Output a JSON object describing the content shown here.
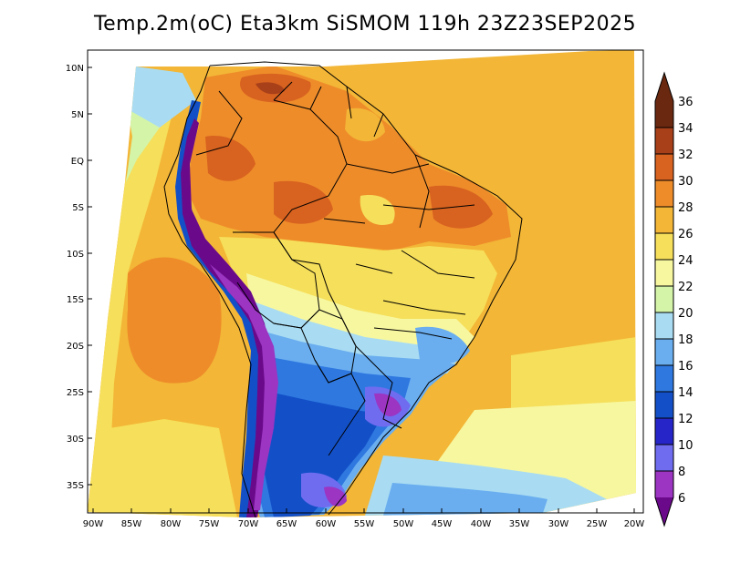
{
  "title": "Temp.2m(oC) Eta3km SiSMOM 119h 23Z23SEP2025",
  "colorbar": {
    "levels": [
      "6",
      "8",
      "10",
      "12",
      "14",
      "16",
      "18",
      "20",
      "22",
      "24",
      "26",
      "28",
      "30",
      "32",
      "34",
      "36"
    ],
    "colors": [
      "#6a0a8a",
      "#9b35c2",
      "#6f6cf0",
      "#2626c8",
      "#1350c8",
      "#2e78e0",
      "#6aaef0",
      "#a9dcf2",
      "#d4f4a8",
      "#f7f7a0",
      "#f6df5a",
      "#f3b636",
      "#ee8c2a",
      "#d8621f",
      "#a8401a",
      "#6a2810"
    ]
  },
  "axes": {
    "lat_labels": [
      "10N",
      "5N",
      "EQ",
      "5S",
      "10S",
      "15S",
      "20S",
      "25S",
      "30S",
      "35S"
    ],
    "lon_labels": [
      "90W",
      "85W",
      "80W",
      "75W",
      "70W",
      "65W",
      "60W",
      "55W",
      "50W",
      "45W",
      "40W",
      "35W",
      "30W",
      "25W",
      "20W"
    ]
  },
  "map_colors": {
    "ocean_base": "#f3b636",
    "warm_ocean": "#ee8c2a",
    "cool_ocean": "#f7f7a0",
    "amazon": "#ee8c2a",
    "amazon_hot": "#d8621f",
    "south_brazil": "#2e78e0",
    "andes": "#6a0a8a",
    "border": "#000000"
  }
}
